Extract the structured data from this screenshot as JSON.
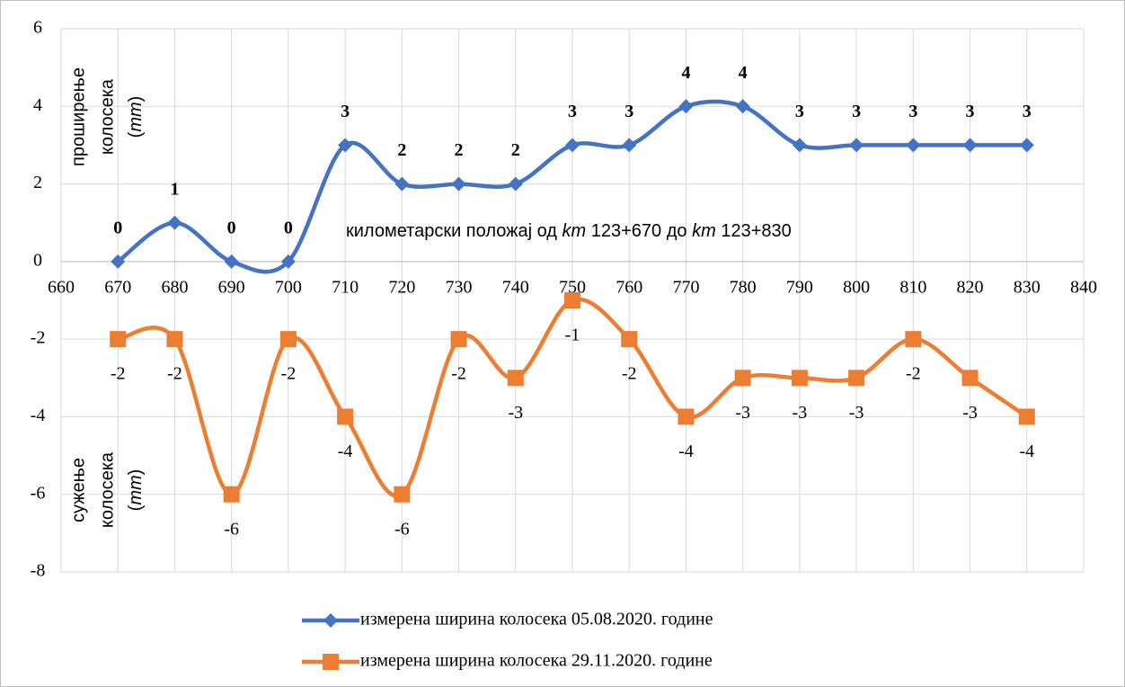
{
  "chart_data": {
    "type": "line",
    "smooth": true,
    "grid": true,
    "x": [
      670,
      680,
      690,
      700,
      710,
      720,
      730,
      740,
      750,
      760,
      770,
      780,
      790,
      800,
      810,
      820,
      830
    ],
    "xlim": [
      660,
      840
    ],
    "xticks": [
      660,
      670,
      680,
      690,
      700,
      710,
      720,
      730,
      740,
      750,
      760,
      770,
      780,
      790,
      800,
      810,
      820,
      830,
      840
    ],
    "ylim": [
      -8,
      6
    ],
    "yticks": [
      -8,
      -6,
      -4,
      -2,
      0,
      2,
      4,
      6
    ],
    "series": [
      {
        "name": "измерена ширина колосека 05.08.2020. године",
        "color": "#4472c4",
        "marker": "diamond",
        "label_position": "above",
        "values": [
          0,
          1,
          0,
          0,
          3,
          2,
          2,
          2,
          3,
          3,
          4,
          4,
          3,
          3,
          3,
          3,
          3
        ]
      },
      {
        "name": "измерена ширина колосека 29.11.2020. године",
        "color": "#ed7d31",
        "marker": "square",
        "label_position": "below",
        "values": [
          -2,
          -2,
          -6,
          -2,
          -4,
          -6,
          -2,
          -3,
          -1,
          -2,
          -4,
          -3,
          -3,
          -3,
          -2,
          -3,
          -4
        ]
      }
    ],
    "annotation": [
      "километарски положај  од ",
      "km",
      " 123+670 до ",
      "km",
      " 123+830"
    ],
    "y_label_upper": {
      "lines": [
        "проширење",
        "колосека"
      ],
      "unit": [
        "(",
        "mm",
        ")"
      ]
    },
    "y_label_lower": {
      "lines": [
        "сужење",
        "колосека"
      ],
      "unit": [
        "(",
        "mm",
        ")"
      ]
    }
  }
}
